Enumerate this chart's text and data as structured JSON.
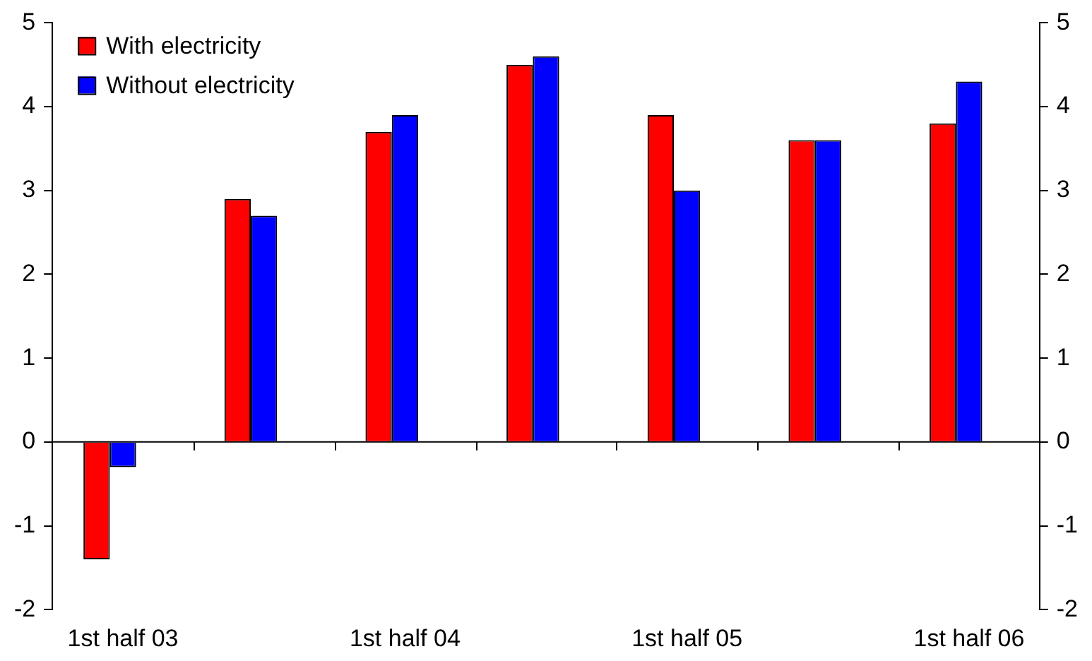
{
  "chart_data": {
    "type": "bar",
    "categories": [
      "1st half 03",
      null,
      "1st half 04",
      null,
      "1st half 05",
      null,
      "1st half 06"
    ],
    "series": [
      {
        "name": "With electricity",
        "color": "#ff0000",
        "values": [
          -1.4,
          2.9,
          3.7,
          4.5,
          3.9,
          3.6,
          3.8
        ]
      },
      {
        "name": "Without electricity",
        "color": "#0000ff",
        "values": [
          -0.3,
          2.7,
          3.9,
          4.6,
          3.0,
          3.6,
          4.3
        ]
      }
    ],
    "ylim": [
      -2,
      5
    ],
    "yticks": [
      -2,
      -1,
      0,
      1,
      2,
      3,
      4,
      5
    ],
    "y2lim": [
      -2,
      5
    ],
    "y2ticks": [
      -2,
      -1,
      0,
      1,
      2,
      3,
      4,
      5
    ],
    "legend": "top left"
  }
}
